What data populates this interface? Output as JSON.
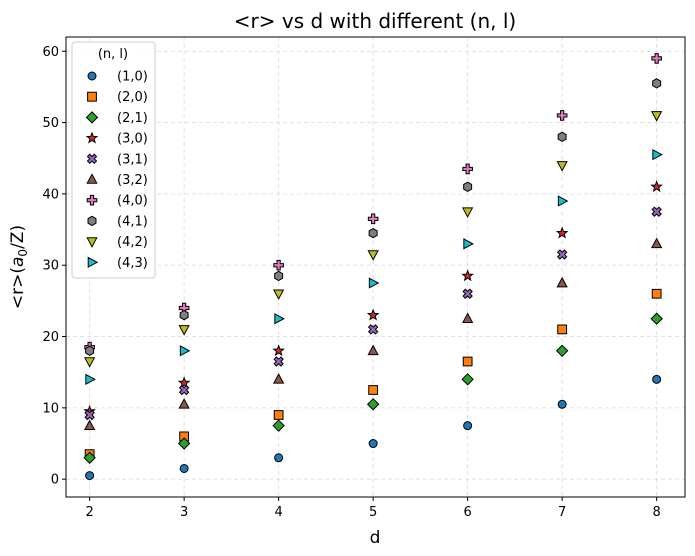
{
  "chart_data": {
    "type": "scatter",
    "title": "<r> vs d with different (n, l)",
    "xlabel": "d",
    "ylabel_prefix": "<r>(",
    "ylabel_symbol": "a",
    "ylabel_subscript": "0",
    "ylabel_suffix": "/Z)",
    "xlim": [
      1.75,
      8.3
    ],
    "ylim": [
      -2.5,
      62
    ],
    "xticks": [
      2,
      3,
      4,
      5,
      6,
      7,
      8
    ],
    "yticks": [
      0,
      10,
      20,
      30,
      40,
      50,
      60
    ],
    "grid": true,
    "legend_title": "(n, l)",
    "legend_location": "upper-left",
    "x": [
      2,
      3,
      4,
      5,
      6,
      7,
      8
    ],
    "series": [
      {
        "name": "(1,0)",
        "marker": "circle",
        "color": "#1f77b4",
        "values": [
          0.5,
          1.5,
          3,
          5,
          7.5,
          10.5,
          14
        ]
      },
      {
        "name": "(2,0)",
        "marker": "square",
        "color": "#ff7f0e",
        "values": [
          3.5,
          6,
          9,
          12.5,
          16.5,
          21,
          26
        ]
      },
      {
        "name": "(2,1)",
        "marker": "diamond",
        "color": "#2ca02c",
        "values": [
          3,
          5,
          7.5,
          10.5,
          14,
          18,
          22.5
        ]
      },
      {
        "name": "(3,0)",
        "marker": "star",
        "color": "#d62728",
        "values": [
          9.5,
          13.5,
          18,
          23,
          28.5,
          34.5,
          41
        ]
      },
      {
        "name": "(3,1)",
        "marker": "x-filled",
        "color": "#9467bd",
        "values": [
          9,
          12.5,
          16.5,
          21,
          26,
          31.5,
          37.5
        ]
      },
      {
        "name": "(3,2)",
        "marker": "triangle-up",
        "color": "#8c564b",
        "values": [
          7.5,
          10.5,
          14,
          18,
          22.5,
          27.5,
          33
        ]
      },
      {
        "name": "(4,0)",
        "marker": "plus-filled",
        "color": "#e377c2",
        "values": [
          18.5,
          24,
          30,
          36.5,
          43.5,
          51,
          59
        ]
      },
      {
        "name": "(4,1)",
        "marker": "hexagon",
        "color": "#7f7f7f",
        "values": [
          18,
          23,
          28.5,
          34.5,
          41,
          48,
          55.5
        ]
      },
      {
        "name": "(4,2)",
        "marker": "triangle-down",
        "color": "#bcbd22",
        "values": [
          16.5,
          21,
          26,
          31.5,
          37.5,
          44,
          51
        ]
      },
      {
        "name": "(4,3)",
        "marker": "triangle-right",
        "color": "#17becf",
        "values": [
          14,
          18,
          22.5,
          27.5,
          33,
          39,
          45.5
        ]
      }
    ]
  }
}
